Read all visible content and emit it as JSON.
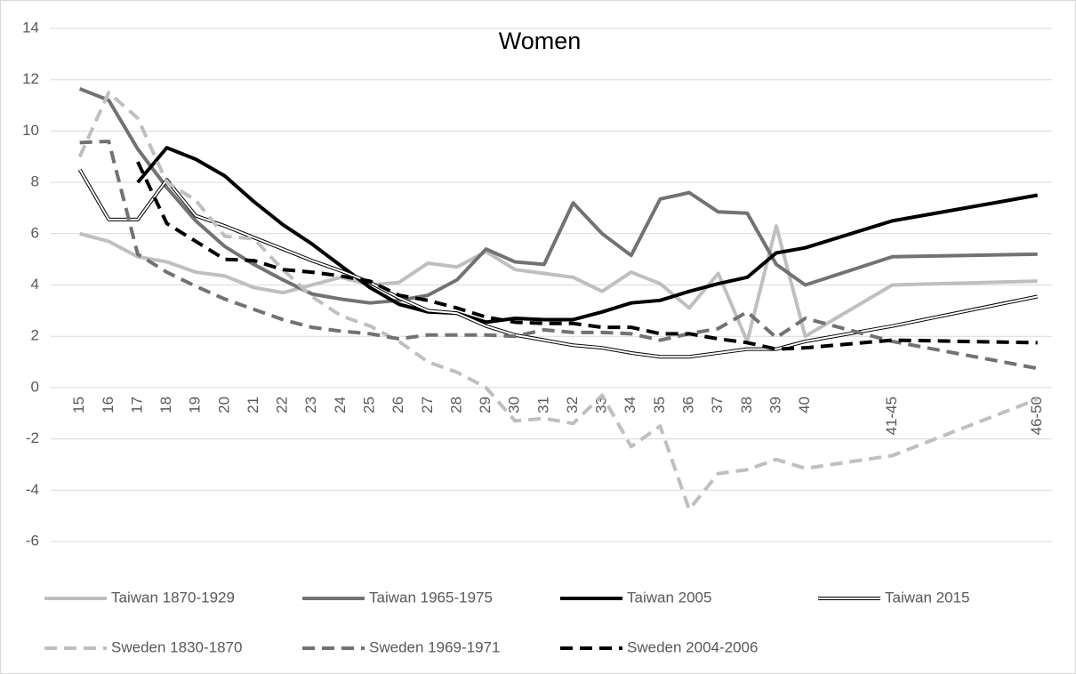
{
  "chart_data": {
    "type": "line",
    "title": "Women",
    "x": [
      15,
      16,
      17,
      18,
      19,
      20,
      21,
      22,
      23,
      24,
      25,
      26,
      27,
      28,
      29,
      30,
      31,
      32,
      33,
      34,
      35,
      36,
      37,
      38,
      39,
      40,
      43,
      48
    ],
    "xlim": [
      14,
      48.5
    ],
    "xticks": [
      15,
      16,
      17,
      18,
      19,
      20,
      21,
      22,
      23,
      24,
      25,
      26,
      27,
      28,
      29,
      30,
      31,
      32,
      33,
      34,
      35,
      36,
      37,
      38,
      39,
      40,
      {
        "value": 43,
        "label": "41-45"
      },
      {
        "value": 48,
        "label": "46-50"
      }
    ],
    "ylim": [
      -6,
      14
    ],
    "yticks": [
      -6,
      -4,
      -2,
      0,
      2,
      4,
      6,
      8,
      10,
      12,
      14
    ],
    "grid": true,
    "series": [
      {
        "name": "Taiwan 1870-1929",
        "color": "#bfbfbf",
        "width": 4,
        "dash": false,
        "double": false,
        "values": [
          6.0,
          5.7,
          5.1,
          4.9,
          4.5,
          4.35,
          3.9,
          3.7,
          4.0,
          4.3,
          4.0,
          4.1,
          4.85,
          4.7,
          5.3,
          4.6,
          4.45,
          4.3,
          3.75,
          4.5,
          4.05,
          3.1,
          4.45,
          1.8,
          6.3,
          2.0,
          4.0,
          4.15
        ]
      },
      {
        "name": "Taiwan 1965-1975",
        "color": "#767171",
        "width": 4,
        "dash": false,
        "double": false,
        "values": [
          11.65,
          11.2,
          9.3,
          7.8,
          6.5,
          5.5,
          4.8,
          4.2,
          3.65,
          3.45,
          3.3,
          3.4,
          3.6,
          4.2,
          5.4,
          4.9,
          4.8,
          7.2,
          6.0,
          5.15,
          7.35,
          7.6,
          6.85,
          6.8,
          4.8,
          4.0,
          5.1,
          5.2
        ]
      },
      {
        "name": "Taiwan 2005",
        "color": "#000000",
        "width": 4,
        "dash": false,
        "double": false,
        "values": [
          null,
          null,
          8.0,
          9.35,
          8.9,
          8.25,
          7.25,
          6.35,
          5.6,
          4.75,
          3.9,
          3.25,
          2.95,
          2.9,
          2.55,
          2.7,
          2.65,
          2.65,
          2.95,
          3.3,
          3.4,
          3.75,
          4.05,
          4.3,
          5.25,
          5.45,
          6.5,
          7.5
        ]
      },
      {
        "name": "Taiwan 2015",
        "color": "#000000",
        "width": 4,
        "dash": false,
        "double": true,
        "values": [
          8.5,
          6.55,
          6.55,
          8.1,
          6.7,
          6.3,
          5.85,
          5.4,
          4.95,
          4.55,
          4.1,
          3.5,
          3.0,
          2.9,
          2.4,
          2.05,
          1.85,
          1.65,
          1.55,
          1.35,
          1.2,
          1.2,
          1.35,
          1.5,
          1.5,
          1.8,
          2.4,
          3.55
        ]
      },
      {
        "name": "Sweden 1830-1870",
        "color": "#bfbfbf",
        "width": 4,
        "dash": true,
        "double": false,
        "values": [
          9.0,
          11.5,
          10.5,
          8.0,
          7.3,
          5.9,
          5.8,
          4.6,
          3.55,
          2.8,
          2.4,
          1.8,
          1.0,
          0.6,
          0.0,
          -1.3,
          -1.2,
          -1.4,
          -0.3,
          -2.3,
          -1.5,
          -4.75,
          -3.35,
          -3.2,
          -2.8,
          -3.15,
          -2.65,
          -0.45
        ]
      },
      {
        "name": "Sweden 1969-1971",
        "color": "#767171",
        "width": 4,
        "dash": true,
        "double": false,
        "values": [
          9.55,
          9.6,
          5.2,
          4.5,
          3.95,
          3.45,
          3.05,
          2.65,
          2.35,
          2.2,
          2.1,
          1.9,
          2.05,
          2.05,
          2.05,
          2.0,
          2.25,
          2.15,
          2.15,
          2.1,
          1.85,
          2.1,
          2.3,
          2.95,
          1.95,
          2.7,
          1.8,
          0.75
        ]
      },
      {
        "name": "Sweden 2004-2006",
        "color": "#000000",
        "width": 4,
        "dash": true,
        "double": false,
        "values": [
          null,
          null,
          8.8,
          6.4,
          5.7,
          5.0,
          4.95,
          4.6,
          4.5,
          4.35,
          4.15,
          3.6,
          3.4,
          3.1,
          2.75,
          2.55,
          2.5,
          2.5,
          2.35,
          2.35,
          2.1,
          2.1,
          1.9,
          1.75,
          1.5,
          1.55,
          1.85,
          1.75
        ]
      }
    ]
  }
}
